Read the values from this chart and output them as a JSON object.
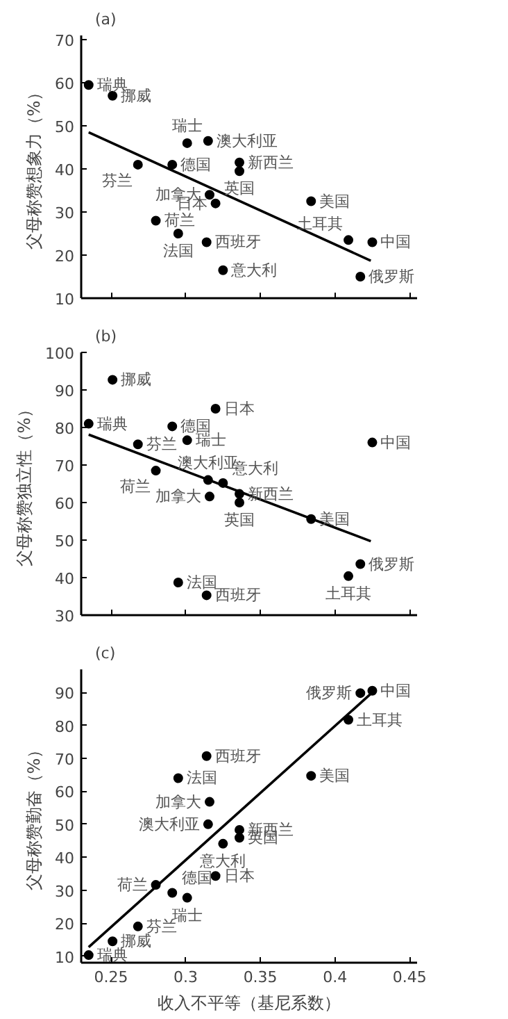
{
  "chart_data": [
    {
      "type": "scatter",
      "title": "(a)",
      "ylabel": "父母称赞想象力（%）",
      "xlim": [
        0.23,
        0.455
      ],
      "xticks": [
        0.25,
        0.3,
        0.35,
        0.4,
        0.45
      ],
      "ylim": [
        10,
        71
      ],
      "yticks": [
        10,
        20,
        30,
        40,
        50,
        60,
        70
      ],
      "tick_labels": "y",
      "grid": false,
      "marker": "circle",
      "series": [
        {
          "color": "#000000",
          "x": [
            0.235,
            0.251,
            0.268,
            0.28,
            0.291,
            0.301,
            0.295,
            0.314,
            0.315,
            0.316,
            0.32,
            0.325,
            0.336,
            0.336,
            0.384,
            0.409,
            0.417,
            0.425
          ],
          "values": [
            59.5,
            57,
            41,
            28,
            41,
            46,
            25,
            23,
            46.5,
            34,
            32,
            16.5,
            41.5,
            39.5,
            32.5,
            23.5,
            15,
            23
          ]
        },
        {
          "type": "line",
          "marker": "none",
          "color": "#000000",
          "x": [
            0.235,
            0.424
          ],
          "values": [
            48.5,
            18.7
          ]
        }
      ],
      "annotations": [
        {
          "text": "瑞典",
          "x": 0.235,
          "y": 59.5
        },
        {
          "text": "挪威",
          "x": 0.251,
          "y": 57
        },
        {
          "text": "芬兰",
          "x": 0.268,
          "y": 41
        },
        {
          "text": "荷兰",
          "x": 0.28,
          "y": 28
        },
        {
          "text": "德国",
          "x": 0.291,
          "y": 41
        },
        {
          "text": "瑞士",
          "x": 0.301,
          "y": 46
        },
        {
          "text": "法国",
          "x": 0.295,
          "y": 25
        },
        {
          "text": "西班牙",
          "x": 0.314,
          "y": 23
        },
        {
          "text": "澳大利亚",
          "x": 0.315,
          "y": 46.5
        },
        {
          "text": "加拿大",
          "x": 0.316,
          "y": 34
        },
        {
          "text": "日本",
          "x": 0.32,
          "y": 32
        },
        {
          "text": "意大利",
          "x": 0.325,
          "y": 16.5
        },
        {
          "text": "新西兰",
          "x": 0.336,
          "y": 41.5
        },
        {
          "text": "英国",
          "x": 0.336,
          "y": 39.5
        },
        {
          "text": "美国",
          "x": 0.384,
          "y": 32.5
        },
        {
          "text": "土耳其",
          "x": 0.409,
          "y": 23.5
        },
        {
          "text": "俄罗斯",
          "x": 0.417,
          "y": 15
        },
        {
          "text": "中国",
          "x": 0.425,
          "y": 23
        }
      ]
    },
    {
      "type": "scatter",
      "title": "(b)",
      "ylabel": "父母称赞独立性（%）",
      "xlim": [
        0.23,
        0.455
      ],
      "xticks": [
        0.25,
        0.3,
        0.35,
        0.4,
        0.45
      ],
      "ylim": [
        30,
        100
      ],
      "yticks": [
        30,
        40,
        50,
        60,
        70,
        80,
        90,
        100
      ],
      "tick_labels": "y",
      "grid": false,
      "marker": "circle",
      "series": [
        {
          "color": "#000000",
          "x": [
            0.235,
            0.251,
            0.268,
            0.28,
            0.291,
            0.301,
            0.295,
            0.314,
            0.315,
            0.316,
            0.32,
            0.325,
            0.336,
            0.336,
            0.384,
            0.409,
            0.417,
            0.425
          ],
          "values": [
            81,
            92.7,
            75.5,
            68.5,
            80.3,
            76.6,
            38.7,
            35.3,
            66,
            61.6,
            85,
            65.2,
            62.3,
            60,
            55.6,
            40.4,
            43.6,
            76
          ]
        },
        {
          "type": "line",
          "marker": "none",
          "color": "#000000",
          "x": [
            0.235,
            0.424
          ],
          "values": [
            78.1,
            49.7
          ]
        }
      ],
      "annotations": [
        {
          "text": "瑞典",
          "x": 0.235,
          "y": 81
        },
        {
          "text": "挪威",
          "x": 0.251,
          "y": 92.7
        },
        {
          "text": "芬兰",
          "x": 0.268,
          "y": 75.5
        },
        {
          "text": "荷兰",
          "x": 0.28,
          "y": 68.5
        },
        {
          "text": "德国",
          "x": 0.291,
          "y": 80.3
        },
        {
          "text": "瑞士",
          "x": 0.301,
          "y": 76.6
        },
        {
          "text": "法国",
          "x": 0.295,
          "y": 38.7
        },
        {
          "text": "西班牙",
          "x": 0.314,
          "y": 35.3
        },
        {
          "text": "澳大利亚",
          "x": 0.315,
          "y": 66
        },
        {
          "text": "加拿大",
          "x": 0.316,
          "y": 61.6
        },
        {
          "text": "日本",
          "x": 0.32,
          "y": 85
        },
        {
          "text": "意大利",
          "x": 0.325,
          "y": 65.2
        },
        {
          "text": "新西兰",
          "x": 0.336,
          "y": 62.3
        },
        {
          "text": "英国",
          "x": 0.336,
          "y": 60
        },
        {
          "text": "美国",
          "x": 0.384,
          "y": 55.6
        },
        {
          "text": "土耳其",
          "x": 0.409,
          "y": 40.4
        },
        {
          "text": "俄罗斯",
          "x": 0.417,
          "y": 43.6
        },
        {
          "text": "中国",
          "x": 0.425,
          "y": 76
        }
      ]
    },
    {
      "type": "scatter",
      "title": "(c)",
      "xlabel": "收入不平等（基尼系数）",
      "ylabel": "父母称赞勤奋（%）",
      "xlim": [
        0.23,
        0.455
      ],
      "xticks": [
        0.25,
        0.3,
        0.35,
        0.4,
        0.45
      ],
      "ylim": [
        8,
        97
      ],
      "yticks": [
        10,
        20,
        30,
        40,
        50,
        60,
        70,
        80,
        90
      ],
      "grid": false,
      "marker": "circle",
      "series": [
        {
          "color": "#000000",
          "x": [
            0.235,
            0.251,
            0.268,
            0.28,
            0.291,
            0.301,
            0.295,
            0.314,
            0.315,
            0.316,
            0.32,
            0.325,
            0.336,
            0.336,
            0.384,
            0.409,
            0.417,
            0.425
          ],
          "values": [
            10.3,
            14.5,
            19,
            31.6,
            29.2,
            27.7,
            64,
            70.7,
            50,
            56.8,
            34.3,
            44.1,
            48.3,
            45.9,
            64.7,
            81.7,
            89.8,
            90.5
          ]
        },
        {
          "type": "line",
          "marker": "none",
          "color": "#000000",
          "x": [
            0.235,
            0.425
          ],
          "values": [
            12.7,
            90
          ]
        }
      ],
      "annotations": [
        {
          "text": "瑞典",
          "x": 0.235,
          "y": 10.3
        },
        {
          "text": "挪威",
          "x": 0.251,
          "y": 14.5
        },
        {
          "text": "芬兰",
          "x": 0.268,
          "y": 19
        },
        {
          "text": "荷兰",
          "x": 0.28,
          "y": 31.6
        },
        {
          "text": "德国",
          "x": 0.291,
          "y": 29.2
        },
        {
          "text": "瑞士",
          "x": 0.301,
          "y": 27.7
        },
        {
          "text": "法国",
          "x": 0.295,
          "y": 64
        },
        {
          "text": "西班牙",
          "x": 0.314,
          "y": 70.7
        },
        {
          "text": "澳大利亚",
          "x": 0.315,
          "y": 50
        },
        {
          "text": "加拿大",
          "x": 0.316,
          "y": 56.8
        },
        {
          "text": "日本",
          "x": 0.32,
          "y": 34.3
        },
        {
          "text": "意大利",
          "x": 0.325,
          "y": 44.1
        },
        {
          "text": "新西兰",
          "x": 0.336,
          "y": 48.3
        },
        {
          "text": "英国",
          "x": 0.336,
          "y": 45.9
        },
        {
          "text": "美国",
          "x": 0.384,
          "y": 64.7
        },
        {
          "text": "土耳其",
          "x": 0.409,
          "y": 81.7
        },
        {
          "text": "俄罗斯",
          "x": 0.417,
          "y": 89.8
        },
        {
          "text": "中国",
          "x": 0.425,
          "y": 90.5
        }
      ]
    }
  ]
}
